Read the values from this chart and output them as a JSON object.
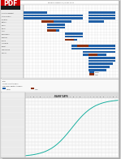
{
  "bg_color": "#d4d4d4",
  "page_color": "#ffffff",
  "gantt_bg": "#ffffff",
  "bar_blue": "#1f5fa6",
  "bar_brown": "#8b3010",
  "grid_color": "#c8c8c8",
  "grid_color_light": "#e0e0e0",
  "text_color": "#333333",
  "header_color": "#c8c8c8",
  "row_alt": "#f0f0f0",
  "pdf_bg": "#1a1a1a",
  "pdf_text": "#ffffff",
  "pdf_red": "#cc0000",
  "shadow": "#aaaaaa",
  "teal_line": "#00a896",
  "label_col_bg": "#eeeeee",
  "table_header_bg": "#dddddd"
}
